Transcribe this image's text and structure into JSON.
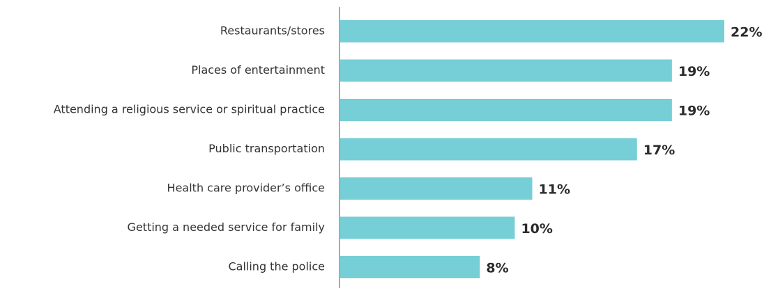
{
  "chart_data": {
    "type": "bar",
    "orientation": "horizontal",
    "categories": [
      "Restaurants/stores",
      "Places of entertainment",
      "Attending a religious service or spiritual practice",
      "Public transportation",
      "Health care provider’s office",
      "Getting a needed service for family",
      "Calling the police"
    ],
    "values": [
      22,
      19,
      19,
      17,
      11,
      10,
      8
    ],
    "value_labels": [
      "22%",
      "19%",
      "19%",
      "17%",
      "11%",
      "10%",
      "8%"
    ],
    "color": "#76ced6"
  }
}
